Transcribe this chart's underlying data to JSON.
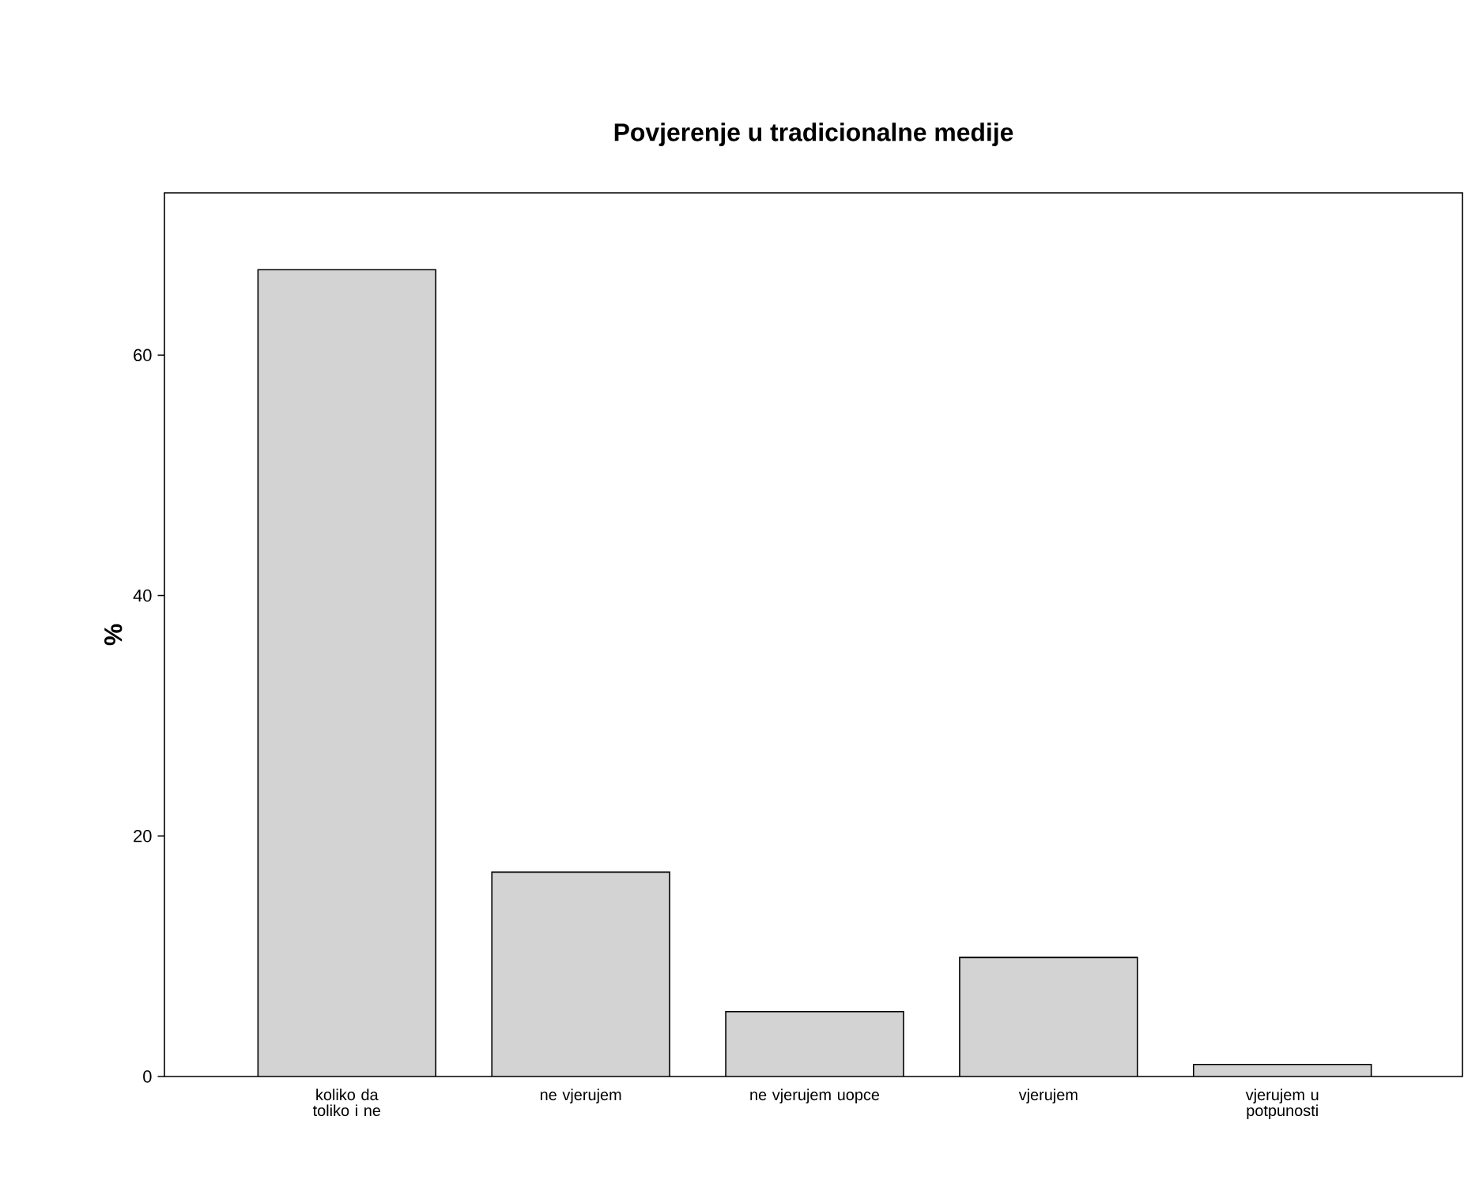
{
  "chart_data": {
    "type": "bar",
    "title": "Povjerenje u tradicionalne medije",
    "ylabel": "%",
    "categories": [
      "koliko da toliko i ne",
      "ne vjerujem",
      "ne vjerujem uopce",
      "vjerujem",
      "vjerujem u potpunosti"
    ],
    "values": [
      67.1,
      17.0,
      5.4,
      9.9,
      1.0
    ],
    "color": "#d3d3d3",
    "ylim": [
      0,
      73.5
    ],
    "yticks": [
      0,
      20,
      40,
      60
    ]
  }
}
